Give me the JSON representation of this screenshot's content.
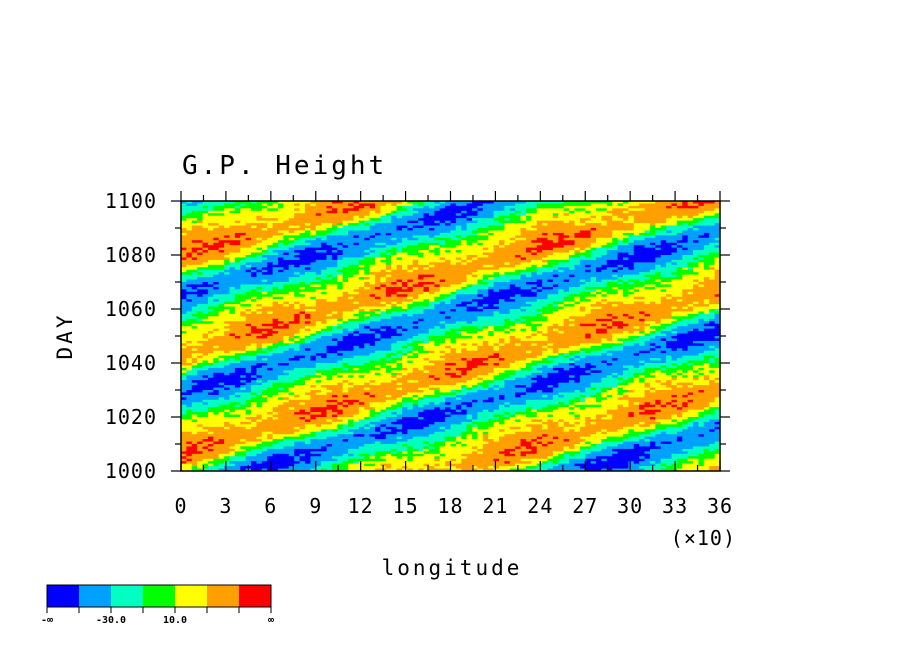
{
  "chart_data": {
    "type": "heatmap",
    "title": "G.P. Height",
    "xlabel": "longitude",
    "ylabel": "DAY",
    "x_multiplier": "(×10)",
    "xlim": [
      0,
      36
    ],
    "ylim": [
      1000,
      1100
    ],
    "x_ticks": [
      "0",
      "3",
      "6",
      "9",
      "12",
      "15",
      "18",
      "21",
      "24",
      "27",
      "30",
      "33",
      "36"
    ],
    "y_ticks": [
      "1000",
      "1020",
      "1040",
      "1060",
      "1080",
      "1100"
    ],
    "pattern": "eastward-sloping bands, phase speed about 12 longitude units (x10 deg) per 20 days",
    "colorbar": {
      "colors": [
        "#0000ff",
        "#00a0ff",
        "#00ffc0",
        "#00ff00",
        "#ffff00",
        "#ffa000",
        "#ff0000"
      ],
      "labels": [
        "-∞",
        "-30.0",
        "10.0",
        "∞"
      ]
    }
  }
}
